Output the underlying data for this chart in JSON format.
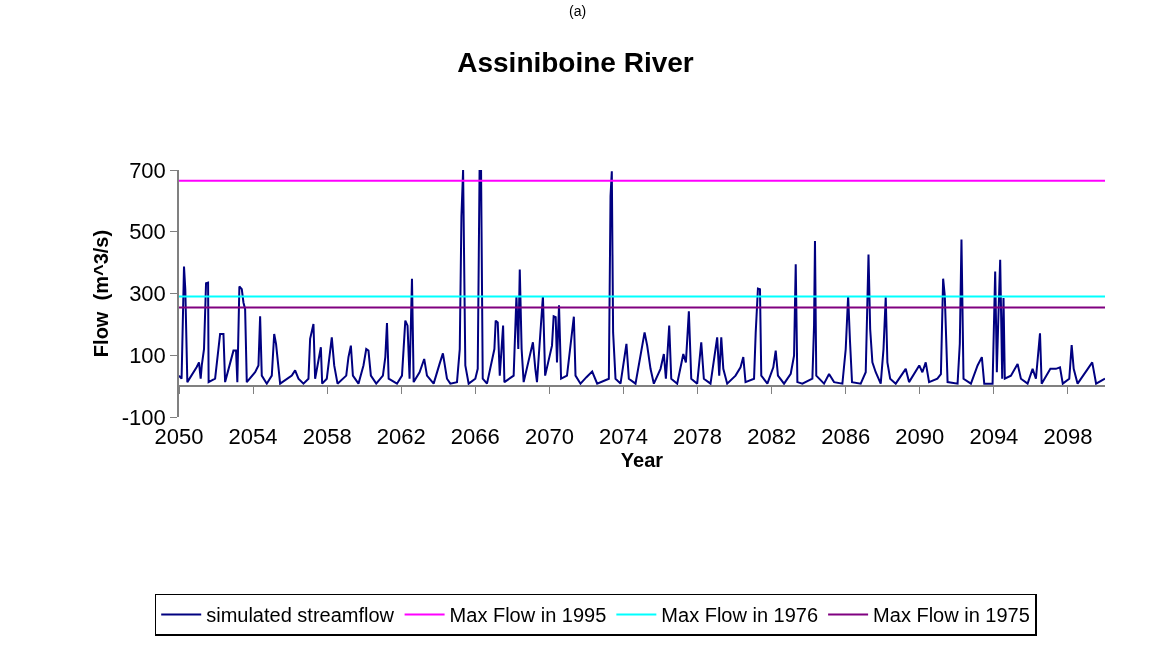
{
  "chart_data": {
    "type": "line",
    "title": "Assiniboine River",
    "xlabel": "Year",
    "ylabel": "Flow  (m^3/s)",
    "annotations": [
      "(a)"
    ],
    "xlim": [
      2050,
      2100
    ],
    "xticks": [
      2050,
      2054,
      2058,
      2062,
      2066,
      2070,
      2074,
      2078,
      2082,
      2086,
      2090,
      2094,
      2098
    ],
    "ylim": [
      -100,
      700
    ],
    "yticks": [
      -100,
      100,
      300,
      500,
      700
    ],
    "legend": "bottom",
    "marker": "none",
    "line_style": "solid",
    "x": [
      2050,
      2050.14,
      2050.27,
      2050.34,
      2050.45,
      2050.95,
      2051.08,
      2051.17,
      2051.23,
      2051.35,
      2051.46,
      2051.57,
      2051.6,
      2051.95,
      2052.22,
      2052.4,
      2052.49,
      2052.94,
      2053.08,
      2053.15,
      2053.26,
      2053.39,
      2053.48,
      2053.57,
      2053.66,
      2054.11,
      2054.29,
      2054.38,
      2054.47,
      2054.74,
      2055.01,
      2055.14,
      2055.24,
      2055.46,
      2056.09,
      2056.27,
      2056.45,
      2056.72,
      2056.99,
      2057.08,
      2057.26,
      2057.35,
      2057.66,
      2057.73,
      2057.98,
      2058.25,
      2058.38,
      2058.56,
      2059.03,
      2059.15,
      2059.28,
      2059.39,
      2059.69,
      2059.96,
      2060.11,
      2060.23,
      2060.36,
      2060.65,
      2061.01,
      2061.14,
      2061.23,
      2061.32,
      2061.77,
      2062.04,
      2062.13,
      2062.22,
      2062.34,
      2062.45,
      2062.58,
      2062.67,
      2062.99,
      2063.24,
      2063.39,
      2063.75,
      2064.07,
      2064.25,
      2064.47,
      2064.65,
      2065.01,
      2065.16,
      2065.25,
      2065.34,
      2065.46,
      2065.64,
      2066,
      2066.13,
      2066.23,
      2066.31,
      2066.4,
      2066.63,
      2067.03,
      2067.1,
      2067.21,
      2067.32,
      2067.5,
      2067.57,
      2068.07,
      2068.22,
      2068.32,
      2068.4,
      2068.5,
      2068.61,
      2069.11,
      2069.24,
      2069.33,
      2069.65,
      2069.77,
      2070.14,
      2070.23,
      2070.34,
      2070.41,
      2070.52,
      2070.63,
      2070.95,
      2071.32,
      2071.41,
      2071.68,
      2072,
      2072.31,
      2072.58,
      2073.21,
      2073.3,
      2073.37,
      2073.44,
      2073.57,
      2073.84,
      2074.16,
      2074.29,
      2074.65,
      2075.14,
      2075.28,
      2075.46,
      2075.64,
      2076,
      2076.18,
      2076.29,
      2076.47,
      2076.58,
      2076.9,
      2077.23,
      2077.37,
      2077.53,
      2077.66,
      2077.98,
      2078.2,
      2078.34,
      2078.7,
      2079.06,
      2079.17,
      2079.28,
      2079.39,
      2079.6,
      2080.05,
      2080.32,
      2080.47,
      2080.59,
      2081.05,
      2081.14,
      2081.26,
      2081.37,
      2081.44,
      2081.77,
      2082.09,
      2082.22,
      2082.34,
      2082.67,
      2083.03,
      2083.21,
      2083.3,
      2083.39,
      2083.66,
      2084.2,
      2084.29,
      2084.34,
      2084.41,
      2084.83,
      2085.1,
      2085.37,
      2085.82,
      2086,
      2086.13,
      2086.23,
      2086.34,
      2086.81,
      2087.08,
      2087.23,
      2087.32,
      2087.44,
      2087.62,
      2087.89,
      2088.04,
      2088.16,
      2088.25,
      2088.4,
      2088.7,
      2089.24,
      2089.42,
      2089.97,
      2090.14,
      2090.32,
      2090.5,
      2090.95,
      2091.14,
      2091.26,
      2091.35,
      2091.5,
      2092.04,
      2092.16,
      2092.25,
      2092.36,
      2092.76,
      2093.12,
      2093.35,
      2093.48,
      2093.93,
      2094.07,
      2094.16,
      2094.23,
      2094.34,
      2094.45,
      2094.52,
      2094.59,
      2094.92,
      2095.28,
      2095.46,
      2095.82,
      2096.09,
      2096.27,
      2096.49,
      2096.58,
      2097.05,
      2097.35,
      2097.57,
      2097.72,
      2098.07,
      2098.2,
      2098.31,
      2098.52,
      2099.07,
      2099.31,
      2099.52,
      2100
    ],
    "series": [
      {
        "name": "simulated streamflow",
        "color": "#000080",
        "values": [
          34,
          24,
          387,
          314,
          13,
          61,
          77,
          24,
          67,
          120,
          333,
          335,
          13,
          24,
          169,
          169,
          13,
          115,
          115,
          13,
          323,
          314,
          271,
          249,
          13,
          45,
          67,
          226,
          34,
          8,
          34,
          169,
          137,
          8,
          34,
          51,
          24,
          8,
          24,
          153,
          201,
          24,
          126,
          8,
          24,
          158,
          67,
          8,
          34,
          94,
          131,
          34,
          8,
          67,
          120,
          115,
          34,
          8,
          34,
          94,
          204,
          24,
          8,
          34,
          123,
          212,
          196,
          24,
          348,
          13,
          45,
          88,
          34,
          8,
          72,
          106,
          24,
          8,
          13,
          120,
          550,
          700,
          67,
          8,
          24,
          56,
          700,
          700,
          24,
          8,
          120,
          212,
          206,
          34,
          196,
          13,
          34,
          292,
          120,
          378,
          120,
          13,
          142,
          56,
          13,
          292,
          34,
          131,
          226,
          223,
          77,
          262,
          24,
          34,
          225,
          34,
          8,
          29,
          47,
          8,
          24,
          615,
          696,
          174,
          24,
          8,
          137,
          24,
          8,
          174,
          131,
          56,
          8,
          56,
          104,
          24,
          196,
          24,
          8,
          104,
          77,
          242,
          24,
          8,
          142,
          24,
          8,
          158,
          34,
          158,
          56,
          8,
          34,
          61,
          94,
          13,
          24,
          174,
          316,
          314,
          34,
          8,
          61,
          115,
          34,
          8,
          40,
          99,
          395,
          13,
          8,
          24,
          196,
          470,
          34,
          8,
          39,
          13,
          8,
          120,
          292,
          147,
          13,
          8,
          45,
          426,
          185,
          77,
          45,
          8,
          120,
          288,
          77,
          24,
          8,
          56,
          13,
          67,
          45,
          77,
          13,
          24,
          39,
          348,
          292,
          13,
          8,
          137,
          475,
          24,
          8,
          67,
          94,
          8,
          8,
          371,
          45,
          198,
          409,
          24,
          285,
          24,
          34,
          72,
          24,
          8,
          56,
          24,
          171,
          8,
          56,
          56,
          61,
          8,
          24,
          133,
          56,
          8,
          56,
          77,
          8,
          24
        ]
      }
    ],
    "ref_lines": [
      {
        "axis": "y",
        "value": 665,
        "label": "Max Flow in 1995",
        "color": "#ff00ff",
        "line_style": "solid"
      },
      {
        "axis": "y",
        "value": 290,
        "label": "Max Flow in 1976",
        "color": "#00ffff",
        "line_style": "solid"
      },
      {
        "axis": "y",
        "value": 255,
        "label": "Max Flow in 1975",
        "color": "#800080",
        "line_style": "solid"
      }
    ]
  }
}
